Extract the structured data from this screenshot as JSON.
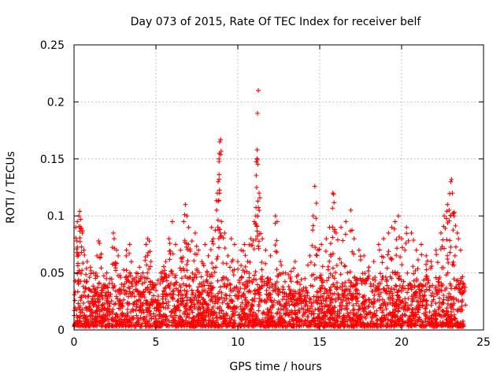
{
  "chart_data": {
    "type": "scatter",
    "title": "Day 073 of 2015, Rate Of TEC Index for receiver belf",
    "xlabel": "GPS time / hours",
    "ylabel": "ROTI / TECUs",
    "xlim": [
      0,
      25
    ],
    "ylim": [
      0,
      0.25
    ],
    "xticks": [
      0,
      5,
      10,
      15,
      20,
      25
    ],
    "xtick_labels": [
      "0",
      "5",
      "10",
      "15",
      "20",
      "25"
    ],
    "yticks": [
      0,
      0.05,
      0.1,
      0.15,
      0.2,
      0.25
    ],
    "ytick_labels": [
      "0",
      "0.05",
      "0.1",
      "0.15",
      "0.2",
      "0.25"
    ],
    "grid": true,
    "marker": "+",
    "marker_color": "#ff0000",
    "background_noise": {
      "x_range": [
        0,
        23.8
      ],
      "y_floor": 0.003,
      "y_typical_max": 0.035
    },
    "series": [
      {
        "name": "ROTI",
        "points": [
          [
            0.1,
            0.09
          ],
          [
            0.2,
            0.095
          ],
          [
            0.3,
            0.1
          ],
          [
            0.35,
            0.104
          ],
          [
            0.4,
            0.097
          ],
          [
            0.5,
            0.085
          ],
          [
            0.6,
            0.07
          ],
          [
            0.8,
            0.06
          ],
          [
            1.0,
            0.055
          ],
          [
            1.2,
            0.05
          ],
          [
            1.4,
            0.065
          ],
          [
            1.5,
            0.078
          ],
          [
            1.55,
            0.076
          ],
          [
            2.0,
            0.05
          ],
          [
            2.2,
            0.045
          ],
          [
            2.4,
            0.085
          ],
          [
            2.45,
            0.08
          ],
          [
            2.6,
            0.07
          ],
          [
            2.7,
            0.065
          ],
          [
            2.9,
            0.04
          ],
          [
            3.2,
            0.07
          ],
          [
            3.4,
            0.075
          ],
          [
            3.6,
            0.045
          ],
          [
            3.8,
            0.05
          ],
          [
            4.0,
            0.055
          ],
          [
            4.2,
            0.05
          ],
          [
            4.4,
            0.075
          ],
          [
            4.5,
            0.08
          ],
          [
            4.6,
            0.078
          ],
          [
            4.7,
            0.06
          ],
          [
            5.0,
            0.04
          ],
          [
            5.3,
            0.05
          ],
          [
            5.6,
            0.06
          ],
          [
            5.8,
            0.08
          ],
          [
            6.0,
            0.095
          ],
          [
            6.2,
            0.075
          ],
          [
            6.5,
            0.07
          ],
          [
            6.7,
            0.095
          ],
          [
            6.8,
            0.11
          ],
          [
            6.9,
            0.1
          ],
          [
            7.0,
            0.09
          ],
          [
            7.2,
            0.078
          ],
          [
            7.4,
            0.085
          ],
          [
            7.6,
            0.07
          ],
          [
            7.8,
            0.06
          ],
          [
            8.0,
            0.075
          ],
          [
            8.2,
            0.065
          ],
          [
            8.4,
            0.09
          ],
          [
            8.5,
            0.08
          ],
          [
            8.7,
            0.105
          ],
          [
            8.75,
            0.12
          ],
          [
            8.8,
            0.13
          ],
          [
            8.85,
            0.15
          ],
          [
            8.9,
            0.165
          ],
          [
            8.95,
            0.167
          ],
          [
            9.0,
            0.095
          ],
          [
            9.2,
            0.085
          ],
          [
            9.4,
            0.065
          ],
          [
            9.6,
            0.08
          ],
          [
            9.8,
            0.075
          ],
          [
            10.0,
            0.06
          ],
          [
            10.2,
            0.07
          ],
          [
            10.4,
            0.075
          ],
          [
            10.6,
            0.06
          ],
          [
            10.8,
            0.08
          ],
          [
            11.0,
            0.095
          ],
          [
            11.1,
            0.1
          ],
          [
            11.15,
            0.125
          ],
          [
            11.18,
            0.158
          ],
          [
            11.2,
            0.19
          ],
          [
            11.25,
            0.21
          ],
          [
            11.3,
            0.12
          ],
          [
            11.5,
            0.08
          ],
          [
            11.7,
            0.07
          ],
          [
            12.0,
            0.065
          ],
          [
            12.3,
            0.1
          ],
          [
            12.4,
            0.095
          ],
          [
            12.6,
            0.06
          ],
          [
            12.9,
            0.05
          ],
          [
            13.2,
            0.045
          ],
          [
            13.5,
            0.06
          ],
          [
            13.8,
            0.04
          ],
          [
            14.1,
            0.045
          ],
          [
            14.4,
            0.065
          ],
          [
            14.6,
            0.1
          ],
          [
            14.7,
            0.126
          ],
          [
            14.9,
            0.07
          ],
          [
            15.1,
            0.075
          ],
          [
            15.4,
            0.08
          ],
          [
            15.6,
            0.09
          ],
          [
            15.8,
            0.12
          ],
          [
            15.85,
            0.119
          ],
          [
            16.0,
            0.085
          ],
          [
            16.3,
            0.09
          ],
          [
            16.6,
            0.095
          ],
          [
            16.9,
            0.105
          ],
          [
            17.1,
            0.08
          ],
          [
            17.4,
            0.07
          ],
          [
            17.7,
            0.065
          ],
          [
            18.0,
            0.055
          ],
          [
            18.3,
            0.06
          ],
          [
            18.6,
            0.075
          ],
          [
            18.9,
            0.08
          ],
          [
            19.2,
            0.085
          ],
          [
            19.4,
            0.09
          ],
          [
            19.6,
            0.095
          ],
          [
            19.8,
            0.1
          ],
          [
            20.0,
            0.08
          ],
          [
            20.3,
            0.09
          ],
          [
            20.6,
            0.085
          ],
          [
            20.9,
            0.07
          ],
          [
            21.2,
            0.075
          ],
          [
            21.5,
            0.065
          ],
          [
            21.8,
            0.06
          ],
          [
            22.1,
            0.07
          ],
          [
            22.4,
            0.085
          ],
          [
            22.6,
            0.1
          ],
          [
            22.8,
            0.11
          ],
          [
            22.9,
            0.105
          ],
          [
            23.0,
            0.13
          ],
          [
            23.05,
            0.132
          ],
          [
            23.1,
            0.12
          ],
          [
            23.2,
            0.1
          ],
          [
            23.4,
            0.085
          ],
          [
            23.6,
            0.07
          ],
          [
            23.8,
            0.04
          ]
        ]
      }
    ]
  }
}
